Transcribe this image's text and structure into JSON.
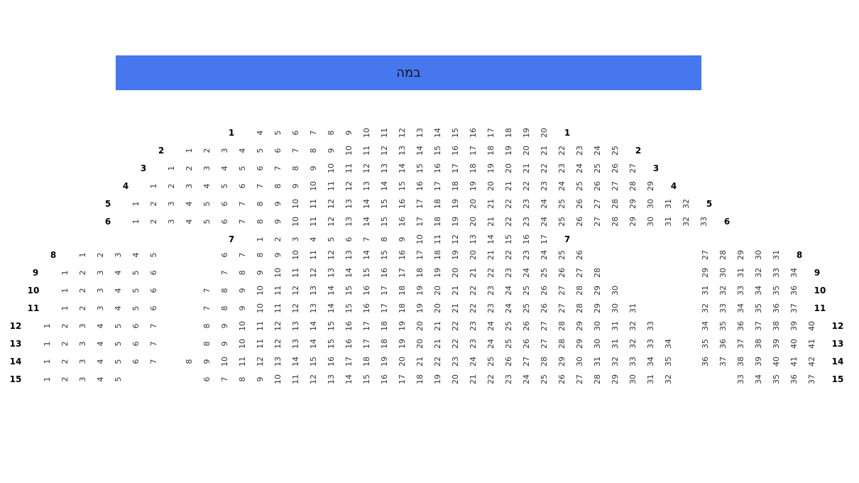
{
  "stage": {
    "label": "במה",
    "color": "#4677ee"
  },
  "rows": [
    {
      "label": "1",
      "segments": [
        {
          "from": 4,
          "to": 20
        }
      ]
    },
    {
      "label": "2",
      "segments": [
        {
          "from": 1,
          "to": 25
        }
      ]
    },
    {
      "label": "3",
      "segments": [
        {
          "from": 1,
          "to": 27
        }
      ]
    },
    {
      "label": "4",
      "segments": [
        {
          "from": 1,
          "to": 29
        }
      ]
    },
    {
      "label": "5",
      "segments": [
        {
          "from": 1,
          "to": 32
        }
      ]
    },
    {
      "label": "6",
      "segments": [
        {
          "from": 1,
          "to": 33
        }
      ]
    },
    {
      "label": "7",
      "segments": [
        {
          "from": 1,
          "to": 17
        }
      ]
    },
    {
      "label": "8",
      "segments": [
        {
          "from": 1,
          "to": 5
        },
        {
          "from": 6,
          "to": 26
        },
        {
          "from": 27,
          "to": 31
        }
      ]
    },
    {
      "label": "9",
      "segments": [
        {
          "from": 1,
          "to": 6
        },
        {
          "from": 7,
          "to": 28
        },
        {
          "from": 29,
          "to": 34
        }
      ]
    },
    {
      "label": "10",
      "segments": [
        {
          "from": 1,
          "to": 6
        },
        {
          "from": 7,
          "to": 30
        },
        {
          "from": 31,
          "to": 36
        }
      ]
    },
    {
      "label": "11",
      "segments": [
        {
          "from": 1,
          "to": 6
        },
        {
          "from": 7,
          "to": 31
        },
        {
          "from": 32,
          "to": 37
        }
      ]
    },
    {
      "label": "12",
      "segments": [
        {
          "from": 1,
          "to": 7
        },
        {
          "from": 8,
          "to": 33
        },
        {
          "from": 34,
          "to": 40
        }
      ]
    },
    {
      "label": "13",
      "segments": [
        {
          "from": 1,
          "to": 7
        },
        {
          "from": 8,
          "to": 34
        },
        {
          "from": 35,
          "to": 41
        }
      ]
    },
    {
      "label": "14",
      "segments": [
        {
          "from": 1,
          "to": 7
        },
        {
          "from": 8,
          "to": 35
        },
        {
          "from": 36,
          "to": 42
        }
      ]
    },
    {
      "label": "15",
      "segments": [
        {
          "from": 1,
          "to": 5
        },
        {
          "from": 6,
          "to": 32
        },
        {
          "from": 33,
          "to": 37
        }
      ]
    }
  ]
}
